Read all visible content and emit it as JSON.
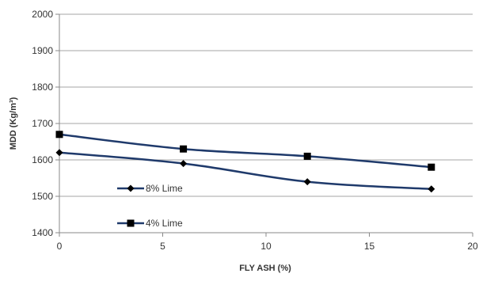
{
  "chart_data": {
    "type": "line",
    "title": "",
    "xlabel": "FLY ASH (%)",
    "ylabel": "MDD (Kg/m³)",
    "xlim": [
      0,
      20
    ],
    "ylim": [
      1400,
      2000
    ],
    "x_ticks": [
      0,
      5,
      10,
      15,
      20
    ],
    "y_ticks": [
      1400,
      1500,
      1600,
      1700,
      1800,
      1900,
      2000
    ],
    "grid": "horizontal",
    "legend_placement": "inside-left",
    "series": [
      {
        "name": "8% Lime",
        "marker": "diamond",
        "color": "#1f3a6b",
        "x": [
          0,
          6,
          12,
          18
        ],
        "y": [
          1620,
          1590,
          1540,
          1520
        ]
      },
      {
        "name": "4% Lime",
        "marker": "square",
        "color": "#1f3a6b",
        "x": [
          0,
          6,
          12,
          18
        ],
        "y": [
          1670,
          1630,
          1610,
          1580
        ]
      }
    ]
  }
}
